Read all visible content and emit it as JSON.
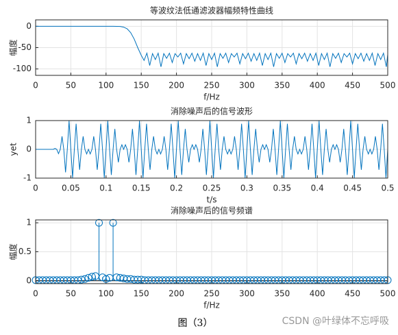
{
  "chart_data": [
    {
      "type": "line",
      "title": "等波纹法低通滤波器幅频特性曲线",
      "xlabel": "f/Hz",
      "ylabel": "幅度",
      "color": "#0072bd",
      "grid": true,
      "xlim": [
        0,
        500
      ],
      "xticks": [
        0,
        50,
        100,
        150,
        200,
        250,
        300,
        350,
        400,
        450,
        500
      ],
      "ylim": [
        -115,
        15
      ],
      "yticks": [
        -100,
        -50,
        0
      ],
      "x": [
        0,
        20,
        40,
        60,
        80,
        100,
        110,
        120,
        125,
        130,
        135,
        140,
        145,
        150,
        154,
        158,
        162,
        166,
        170,
        174,
        178,
        182,
        186,
        190,
        194,
        198,
        202,
        206,
        210,
        214,
        218,
        222,
        226,
        230,
        234,
        238,
        242,
        246,
        250,
        254,
        258,
        262,
        266,
        270,
        274,
        278,
        282,
        286,
        290,
        294,
        298,
        302,
        306,
        310,
        314,
        318,
        322,
        326,
        330,
        334,
        338,
        342,
        346,
        350,
        354,
        358,
        362,
        366,
        370,
        374,
        378,
        382,
        386,
        390,
        394,
        398,
        402,
        406,
        410,
        414,
        418,
        422,
        426,
        430,
        434,
        438,
        442,
        446,
        450,
        454,
        458,
        462,
        466,
        470,
        474,
        478,
        482,
        486,
        490,
        494,
        498,
        500
      ],
      "values": [
        0,
        0,
        0,
        0,
        0,
        0,
        0,
        -0.5,
        -2,
        -6,
        -15,
        -30,
        -50,
        -68,
        -80,
        -63,
        -92,
        -64,
        -78,
        -63,
        -95,
        -64,
        -75,
        -63,
        -85,
        -64,
        -72,
        -63,
        -88,
        -64,
        -76,
        -63,
        -82,
        -64,
        -80,
        -63,
        -92,
        -64,
        -78,
        -63,
        -95,
        -64,
        -75,
        -63,
        -85,
        -64,
        -72,
        -63,
        -88,
        -64,
        -76,
        -63,
        -82,
        -64,
        -80,
        -63,
        -92,
        -64,
        -78,
        -63,
        -95,
        -64,
        -75,
        -63,
        -85,
        -64,
        -72,
        -63,
        -88,
        -64,
        -76,
        -63,
        -82,
        -64,
        -80,
        -63,
        -92,
        -64,
        -78,
        -63,
        -95,
        -64,
        -75,
        -63,
        -85,
        -64,
        -72,
        -63,
        -88,
        -64,
        -76,
        -63,
        -82,
        -64,
        -80,
        -63,
        -92,
        -64,
        -78,
        -63,
        -95,
        -66
      ]
    },
    {
      "type": "line",
      "title": "消除噪声后的信号波形",
      "xlabel": "t/s",
      "ylabel": "yet",
      "color": "#0072bd",
      "grid": true,
      "xlim": [
        0,
        0.5
      ],
      "xticks": [
        0,
        0.05,
        0.1,
        0.15,
        0.2,
        0.25,
        0.3,
        0.35,
        0.4,
        0.45,
        0.5
      ],
      "ylim": [
        -1,
        1
      ],
      "yticks": [
        -1,
        0,
        1
      ],
      "x": [
        0,
        0.0025,
        0.005,
        0.0075,
        0.01,
        0.0125,
        0.015,
        0.0175,
        0.02,
        0.0225,
        0.025,
        0.0275,
        0.03,
        0.0325,
        0.035,
        0.0375,
        0.04,
        0.0425,
        0.045,
        0.0475,
        0.05,
        0.0525,
        0.055,
        0.0575,
        0.06,
        0.0625,
        0.065,
        0.0675,
        0.07,
        0.0725,
        0.075,
        0.0775,
        0.08,
        0.0825,
        0.085,
        0.0875,
        0.09,
        0.0925,
        0.095,
        0.0975,
        0.1,
        0.1025,
        0.105,
        0.1075,
        0.11,
        0.1125,
        0.115,
        0.1175,
        0.12,
        0.1225,
        0.125,
        0.1275,
        0.13,
        0.1325,
        0.135,
        0.1375,
        0.14,
        0.1425,
        0.145,
        0.1475,
        0.15,
        0.1525,
        0.155,
        0.1575,
        0.16,
        0.1625,
        0.165,
        0.1675,
        0.17,
        0.1725,
        0.175,
        0.1775,
        0.18,
        0.1825,
        0.185,
        0.1875,
        0.19,
        0.1925,
        0.195,
        0.1975,
        0.2,
        0.2025,
        0.205,
        0.2075,
        0.21,
        0.2125,
        0.215,
        0.2175,
        0.22,
        0.2225,
        0.225,
        0.2275,
        0.23,
        0.2325,
        0.235,
        0.2375,
        0.24,
        0.2425,
        0.245,
        0.2475,
        0.25,
        0.2525,
        0.255,
        0.2575,
        0.26,
        0.2625,
        0.265,
        0.2675,
        0.27,
        0.2725,
        0.275,
        0.2775,
        0.28,
        0.2825,
        0.285,
        0.2875,
        0.29,
        0.2925,
        0.295,
        0.2975,
        0.3,
        0.3025,
        0.305,
        0.3075,
        0.31,
        0.3125,
        0.315,
        0.3175,
        0.32,
        0.3225,
        0.325,
        0.3275,
        0.33,
        0.3325,
        0.335,
        0.3375,
        0.34,
        0.3425,
        0.345,
        0.3475,
        0.35,
        0.3525,
        0.355,
        0.3575,
        0.36,
        0.3625,
        0.365,
        0.3675,
        0.37,
        0.3725,
        0.375,
        0.3775,
        0.38,
        0.3825,
        0.385,
        0.3875,
        0.39,
        0.3925,
        0.395,
        0.3975,
        0.4,
        0.4025,
        0.405,
        0.4075,
        0.41,
        0.4125,
        0.415,
        0.4175,
        0.42,
        0.4225,
        0.425,
        0.4275,
        0.43,
        0.4325,
        0.435,
        0.4375,
        0.44,
        0.4425,
        0.445,
        0.4475,
        0.45,
        0.4525,
        0.455,
        0.4575,
        0.46,
        0.4625,
        0.465,
        0.4675,
        0.47,
        0.4725,
        0.475,
        0.4775,
        0.48,
        0.4825,
        0.485,
        0.4875,
        0.49,
        0.4925,
        0.495,
        0.4975,
        0.5
      ],
      "values": [
        0,
        0,
        0,
        0,
        0,
        0,
        0,
        0,
        0,
        0,
        0,
        0.03,
        0,
        -0.15,
        0,
        0.45,
        0,
        -0.8,
        0,
        0.99,
        0,
        -0.99,
        0,
        0.89,
        0,
        -0.71,
        0,
        0.45,
        0,
        -0.16,
        0,
        -0.16,
        0,
        0.45,
        0,
        -0.71,
        0,
        0.89,
        0,
        -0.99,
        0,
        0.99,
        0,
        -0.89,
        0,
        0.71,
        0,
        -0.45,
        0,
        0.16,
        0,
        0.16,
        0,
        -0.45,
        0,
        0.71,
        0,
        -0.89,
        0,
        0.99,
        0,
        -0.99,
        0,
        0.89,
        0,
        -0.71,
        0,
        0.45,
        0,
        -0.16,
        0,
        -0.16,
        0,
        0.45,
        0,
        -0.71,
        0,
        0.89,
        0,
        -0.99,
        0,
        0.99,
        0,
        -0.89,
        0,
        0.71,
        0,
        -0.45,
        0,
        0.16,
        0,
        0.16,
        0,
        -0.45,
        0,
        0.71,
        0,
        -0.89,
        0,
        0.99,
        0,
        -0.99,
        0,
        0.89,
        0,
        -0.71,
        0,
        0.45,
        0,
        -0.16,
        0,
        -0.16,
        0,
        0.45,
        0,
        -0.71,
        0,
        0.89,
        0,
        -0.99,
        0,
        0.99,
        0,
        -0.89,
        0,
        0.71,
        0,
        -0.45,
        0,
        0.16,
        0,
        0.16,
        0,
        -0.45,
        0,
        0.71,
        0,
        -0.89,
        0,
        0.99,
        0,
        -0.99,
        0,
        0.89,
        0,
        -0.71,
        0,
        0.45,
        0,
        -0.16,
        0,
        -0.16,
        0,
        0.45,
        0,
        -0.71,
        0,
        0.89,
        0,
        -0.99,
        0,
        0.99,
        0,
        -0.89,
        0,
        0.71,
        0,
        -0.45,
        0,
        0.16,
        0,
        0.16,
        0,
        -0.45,
        0,
        0.71,
        0,
        -0.89,
        0,
        0.99,
        0,
        -0.99,
        0,
        0.89,
        0,
        -0.71,
        0,
        0.45,
        0,
        -0.16,
        0,
        -0.16,
        0,
        0.45,
        0,
        -0.71,
        0,
        0.89,
        0,
        -0.99,
        0
      ]
    },
    {
      "type": "stem",
      "title": "消除噪声后的信号频谱",
      "xlabel": "f/Hz",
      "ylabel": "幅度",
      "color": "#0072bd",
      "grid": true,
      "xlim": [
        0,
        500
      ],
      "xticks": [
        0,
        50,
        100,
        150,
        200,
        250,
        300,
        350,
        400,
        450,
        500
      ],
      "ylim": [
        -0.05,
        1.05
      ],
      "yticks": [
        0,
        0.5,
        1
      ],
      "x": [
        0,
        5,
        10,
        15,
        20,
        25,
        30,
        35,
        40,
        45,
        50,
        55,
        60,
        65,
        70,
        75,
        80,
        85,
        90,
        95,
        100,
        105,
        110,
        115,
        120,
        125,
        130,
        135,
        140,
        145,
        150,
        155,
        160,
        165,
        170,
        175,
        180,
        185,
        190,
        195,
        200,
        205,
        210,
        215,
        220,
        225,
        230,
        235,
        240,
        245,
        250,
        255,
        260,
        265,
        270,
        275,
        280,
        285,
        290,
        295,
        300,
        305,
        310,
        315,
        320,
        325,
        330,
        335,
        340,
        345,
        350,
        355,
        360,
        365,
        370,
        375,
        380,
        385,
        390,
        395,
        400,
        405,
        410,
        415,
        420,
        425,
        430,
        435,
        440,
        445,
        450,
        455,
        460,
        465,
        470,
        475,
        480,
        485,
        490,
        495,
        500
      ],
      "values": [
        0.01,
        0.01,
        0.01,
        0.01,
        0.01,
        0.01,
        0.01,
        0.01,
        0.01,
        0.01,
        0.01,
        0.01,
        0.01,
        0.02,
        0.03,
        0.05,
        0.07,
        0.08,
        1,
        0.06,
        0.03,
        0.05,
        1,
        0.06,
        0.05,
        0.04,
        0.03,
        0.03,
        0.02,
        0.02,
        0.02,
        0.01,
        0.01,
        0.01,
        0.01,
        0.01,
        0.01,
        0.01,
        0.01,
        0.01,
        0.01,
        0.01,
        0.01,
        0.01,
        0.01,
        0.01,
        0.01,
        0.01,
        0.01,
        0.01,
        0.01,
        0.01,
        0.01,
        0.01,
        0.01,
        0.01,
        0.01,
        0.01,
        0.01,
        0.01,
        0.01,
        0.01,
        0.01,
        0.01,
        0.01,
        0.01,
        0.01,
        0.01,
        0.01,
        0.01,
        0.01,
        0.01,
        0.01,
        0.01,
        0.01,
        0.01,
        0.01,
        0.01,
        0.01,
        0.01,
        0.01,
        0.01,
        0.01,
        0.01,
        0.01,
        0.01,
        0.01,
        0.01,
        0.01,
        0.01,
        0.01,
        0.01,
        0.01,
        0.01,
        0.01,
        0.01,
        0.01,
        0.01,
        0.01,
        0.01,
        0.01
      ]
    }
  ],
  "caption": "图（3）",
  "watermark": "CSDN @叶绿体不忘呼吸"
}
